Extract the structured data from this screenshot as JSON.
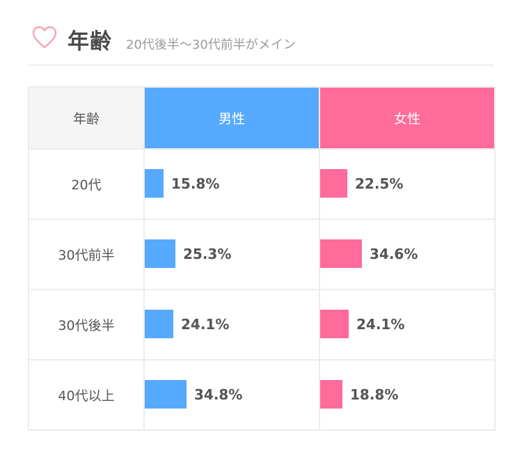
{
  "header": {
    "title": "年齢",
    "subtitle": "20代後半〜30代前半がメイン",
    "icon": "heart-outline-icon",
    "icon_color": "#f4a3b5"
  },
  "chart_data": {
    "type": "table",
    "columns": [
      "年齢",
      "男性",
      "女性"
    ],
    "categories": [
      "20代",
      "30代前半",
      "30代後半",
      "40代以上"
    ],
    "series": [
      {
        "name": "男性",
        "color": "#55a9ff",
        "values": [
          15.8,
          25.3,
          24.1,
          34.8
        ],
        "labels": [
          "15.8%",
          "25.3%",
          "24.1%",
          "34.8%"
        ]
      },
      {
        "name": "女性",
        "color": "#ff6b9a",
        "values": [
          22.5,
          34.6,
          24.1,
          18.8
        ],
        "labels": [
          "22.5%",
          "34.6%",
          "24.1%",
          "18.8%"
        ]
      }
    ],
    "unit": "%"
  }
}
